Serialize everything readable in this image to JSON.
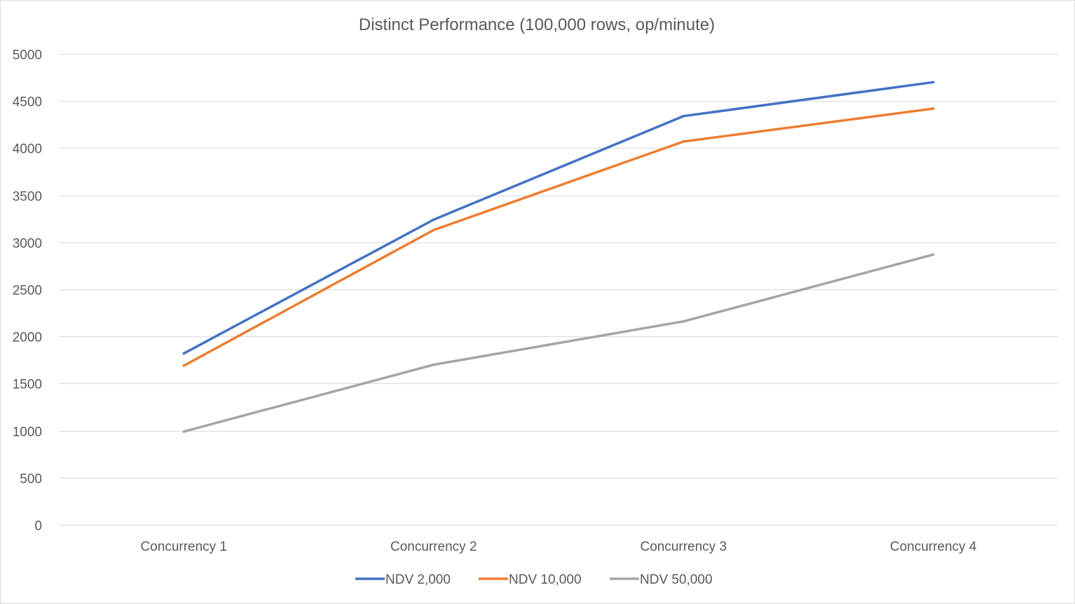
{
  "chart_data": {
    "type": "line",
    "title": "Distinct Performance (100,000 rows, op/minute)",
    "xlabel": "",
    "ylabel": "",
    "categories": [
      "Concurrency 1",
      "Concurrency 2",
      "Concurrency 3",
      "Concurrency 4"
    ],
    "ylim": [
      0,
      5000
    ],
    "yticks": [
      "0",
      "500",
      "1000",
      "1500",
      "2000",
      "2500",
      "3000",
      "3500",
      "4000",
      "4500",
      "5000"
    ],
    "grid": true,
    "legend_position": "bottom",
    "series": [
      {
        "name": "NDV 2,000",
        "color": "#4472c4",
        "values": [
          1820,
          3240,
          4340,
          4700
        ]
      },
      {
        "name": "NDV 10,000",
        "color": "#ed7d31",
        "values": [
          1690,
          3130,
          4070,
          4420
        ]
      },
      {
        "name": "NDV 50,000",
        "color": "#a5a5a5",
        "values": [
          990,
          1700,
          2160,
          2870
        ]
      }
    ]
  }
}
